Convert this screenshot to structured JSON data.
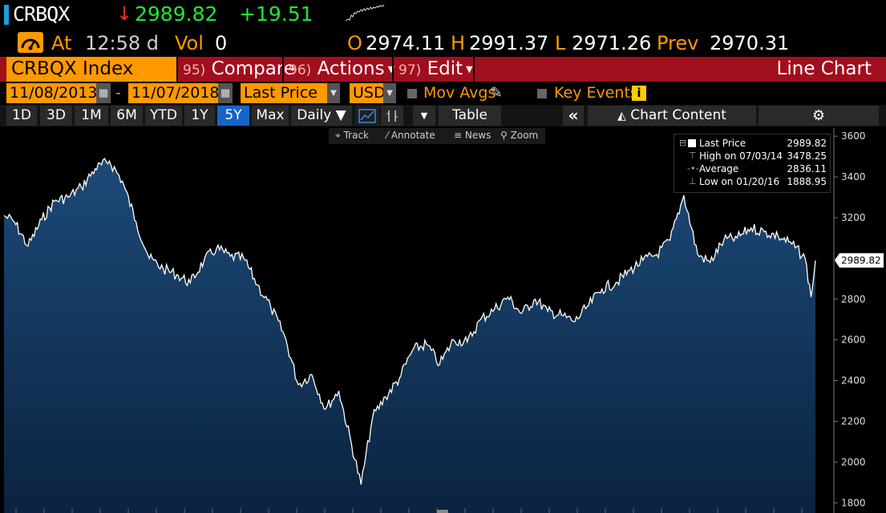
{
  "header": {
    "ticker": "CRBQX",
    "last_price": "2989.82",
    "change": "+19.51",
    "at_label": "At",
    "time": "12:58 d",
    "vol_label": "Vol",
    "volume": "0",
    "open_label": "O",
    "open": "2974.11",
    "high_label": "H",
    "high": "2991.37",
    "low_label": "L",
    "low": "2971.26",
    "prev_label": "Prev",
    "prev": "2970.31"
  },
  "function_bar": {
    "index_name": "CRBQX Index",
    "compare_num": "95)",
    "compare_label": "Compare",
    "actions_num": "96)",
    "actions_label": "Actions",
    "edit_num": "97)",
    "edit_label": "Edit",
    "chart_type_label": "Line Chart"
  },
  "settings": {
    "start_date": "11/08/2013",
    "end_date": "11/07/2018",
    "date_sep": "-",
    "field": "Last Price",
    "currency": "USD",
    "mov_avgs": "Mov Avgs",
    "key_events": "Key Events",
    "info_glyph": "i"
  },
  "timeframes": {
    "items": [
      "1D",
      "3D",
      "1M",
      "6M",
      "YTD",
      "1Y",
      "5Y",
      "Max"
    ],
    "active": "5Y",
    "period": "Daily",
    "table_label": "Table",
    "chart_content_label": "Chart Content"
  },
  "toolbar": {
    "track": "Track",
    "annotate": "Annotate",
    "news": "News",
    "zoom": "Zoom"
  },
  "legend": {
    "rows": [
      {
        "label": "Last Price",
        "value": "2989.82"
      },
      {
        "label": "High on 07/03/14",
        "value": "3478.25"
      },
      {
        "label": "Average",
        "value": "2836.11"
      },
      {
        "label": "Low on 01/20/16",
        "value": "1888.95"
      }
    ]
  },
  "colors": {
    "accent_orange": "#ff9900",
    "up_green": "#22e633",
    "down_red": "#ff2b2b",
    "function_bar_red": "#a10f1e",
    "active_blue": "#1764c8",
    "area_top": "#1c4a78",
    "area_bottom": "#0b2340"
  },
  "chart_data": {
    "type": "area",
    "title": "",
    "xlabel": "",
    "ylabel": "",
    "x_range": [
      "11/08/2013",
      "11/07/2018"
    ],
    "ylim": [
      1750,
      3640
    ],
    "yticks": [
      1800,
      2000,
      2200,
      2400,
      2600,
      2800,
      3000,
      3200,
      3400,
      3600
    ],
    "grid": false,
    "last_value_label": "2989.82",
    "series": [
      {
        "name": "Last Price",
        "x": [
          "11/08/2013",
          "12/01/2013",
          "01/01/2014",
          "02/01/2014",
          "03/01/2014",
          "04/01/2014",
          "05/01/2014",
          "06/01/2014",
          "07/03/2014",
          "08/01/2014",
          "09/01/2014",
          "10/01/2014",
          "11/01/2014",
          "12/01/2014",
          "01/01/2015",
          "02/01/2015",
          "03/01/2015",
          "04/01/2015",
          "05/01/2015",
          "06/01/2015",
          "07/01/2015",
          "08/01/2015",
          "09/01/2015",
          "10/01/2015",
          "11/01/2015",
          "12/01/2015",
          "01/20/2016",
          "02/15/2016",
          "03/15/2016",
          "04/15/2016",
          "05/15/2016",
          "06/15/2016",
          "07/15/2016",
          "08/15/2016",
          "09/15/2016",
          "10/15/2016",
          "11/15/2016",
          "12/15/2016",
          "01/15/2017",
          "02/15/2017",
          "03/15/2017",
          "04/15/2017",
          "05/15/2017",
          "06/15/2017",
          "07/15/2017",
          "08/15/2017",
          "09/15/2017",
          "10/15/2017",
          "11/15/2017",
          "12/15/2017",
          "01/15/2018",
          "02/15/2018",
          "03/15/2018",
          "04/15/2018",
          "05/15/2018",
          "06/15/2018",
          "07/15/2018",
          "08/15/2018",
          "09/15/2018",
          "10/15/2018",
          "10/28/2018",
          "11/07/2018"
        ],
        "values": [
          3210,
          3180,
          3060,
          3190,
          3280,
          3300,
          3350,
          3440,
          3478,
          3380,
          3180,
          3000,
          2950,
          2920,
          2880,
          2990,
          3050,
          3010,
          3000,
          2870,
          2760,
          2620,
          2380,
          2430,
          2260,
          2350,
          1889,
          2220,
          2320,
          2410,
          2550,
          2580,
          2480,
          2600,
          2590,
          2700,
          2750,
          2810,
          2730,
          2800,
          2740,
          2720,
          2690,
          2770,
          2850,
          2880,
          2940,
          2990,
          3020,
          3090,
          3310,
          3020,
          2980,
          3090,
          3100,
          3150,
          3130,
          3110,
          3070,
          3000,
          2810,
          2990
        ]
      }
    ]
  }
}
